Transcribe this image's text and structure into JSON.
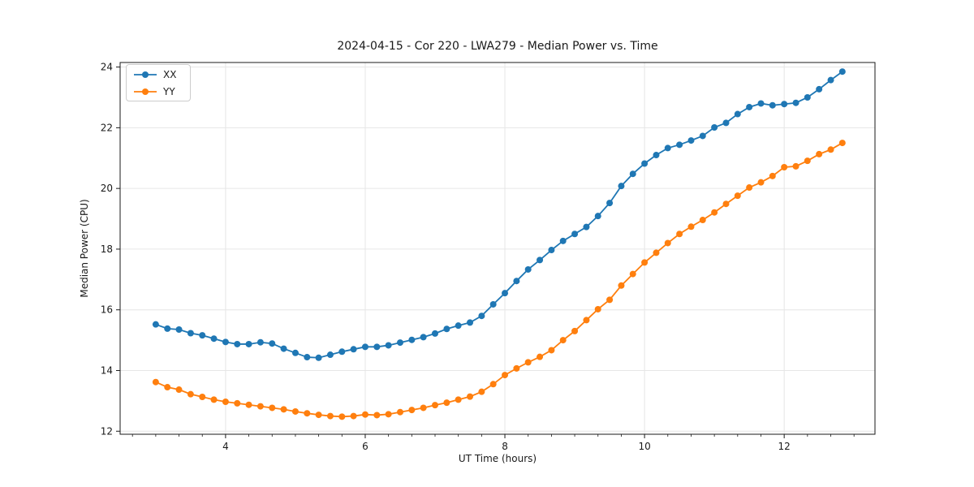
{
  "chart_data": {
    "type": "line",
    "title": "2024-04-15 - Cor 220 - LWA279 - Median Power vs. Time",
    "xlabel": "UT Time (hours)",
    "ylabel": "Median Power (CPU)",
    "xlim": [
      2.49,
      13.3
    ],
    "ylim": [
      11.9,
      24.15
    ],
    "xticks": [
      4,
      6,
      8,
      10,
      12
    ],
    "yticks": [
      12,
      14,
      16,
      18,
      20,
      22,
      24
    ],
    "x_minor_divisions_per_unit": 3,
    "grid": true,
    "legend_position": "upper-left",
    "x": [
      3.0,
      3.167,
      3.333,
      3.5,
      3.667,
      3.833,
      4.0,
      4.167,
      4.333,
      4.5,
      4.667,
      4.833,
      5.0,
      5.167,
      5.333,
      5.5,
      5.667,
      5.833,
      6.0,
      6.167,
      6.333,
      6.5,
      6.667,
      6.833,
      7.0,
      7.167,
      7.333,
      7.5,
      7.667,
      7.833,
      8.0,
      8.167,
      8.333,
      8.5,
      8.667,
      8.833,
      9.0,
      9.167,
      9.333,
      9.5,
      9.667,
      9.833,
      10.0,
      10.167,
      10.333,
      10.5,
      10.667,
      10.833,
      11.0,
      11.167,
      11.333,
      11.5,
      11.667,
      11.833,
      12.0,
      12.167,
      12.333,
      12.5,
      12.667,
      12.833
    ],
    "series": [
      {
        "name": "XX",
        "color": "#1f77b4",
        "values": [
          15.52,
          15.38,
          15.35,
          15.23,
          15.16,
          15.05,
          14.94,
          14.87,
          14.87,
          14.93,
          14.89,
          14.72,
          14.58,
          14.44,
          14.42,
          14.52,
          14.62,
          14.7,
          14.78,
          14.78,
          14.83,
          14.92,
          15.01,
          15.1,
          15.22,
          15.37,
          15.48,
          15.58,
          15.8,
          16.18,
          16.55,
          16.95,
          17.33,
          17.64,
          17.97,
          18.27,
          18.5,
          18.73,
          19.09,
          19.52,
          20.08,
          20.48,
          20.82,
          21.1,
          21.33,
          21.44,
          21.58,
          21.73,
          22.01,
          22.16,
          22.45,
          22.68,
          22.8,
          22.74,
          22.78,
          22.82,
          23.0,
          23.27,
          23.57,
          23.85
        ]
      },
      {
        "name": "YY",
        "color": "#ff7f0e",
        "values": [
          13.62,
          13.45,
          13.37,
          13.22,
          13.13,
          13.04,
          12.97,
          12.92,
          12.87,
          12.82,
          12.77,
          12.72,
          12.65,
          12.59,
          12.54,
          12.5,
          12.48,
          12.5,
          12.55,
          12.53,
          12.56,
          12.63,
          12.7,
          12.77,
          12.86,
          12.94,
          13.04,
          13.14,
          13.3,
          13.55,
          13.85,
          14.07,
          14.27,
          14.45,
          14.67,
          15.0,
          15.3,
          15.66,
          16.02,
          16.33,
          16.8,
          17.18,
          17.56,
          17.88,
          18.2,
          18.5,
          18.74,
          18.96,
          19.21,
          19.49,
          19.76,
          20.03,
          20.2,
          20.41,
          20.7,
          20.73,
          20.91,
          21.13,
          21.28,
          21.5
        ]
      }
    ]
  },
  "style_colors": {
    "grid": "#e6e6e6",
    "spine": "#1a1a1a",
    "tick": "#1a1a1a",
    "tick_label": "#1a1a1a",
    "background": "#ffffff"
  }
}
